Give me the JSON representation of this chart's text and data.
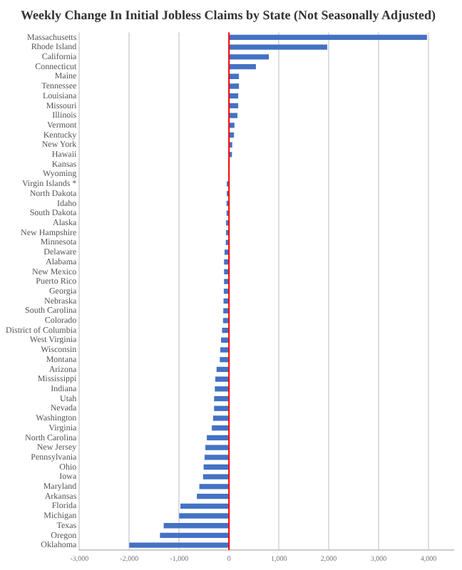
{
  "chart_data": {
    "type": "bar",
    "orientation": "horizontal",
    "title": "Weekly Change In Initial Jobless Claims by State (Not Seasonally Adjusted)",
    "categories": [
      "Massachusetts",
      "Rhode Island",
      "California",
      "Connecticut",
      "Maine",
      "Tennessee",
      "Louisiana",
      "Missouri",
      "Illinois",
      "Vermont",
      "Kentucky",
      "New York",
      "Hawaii",
      "Kansas",
      "Wyoming",
      "Virgin Islands *",
      "North Dakota",
      "Idaho",
      "South Dakota",
      "Alaska",
      "New Hampshire",
      "Minnesota",
      "Delaware",
      "Alabama",
      "New Mexico",
      "Puerto Rico",
      "Georgia",
      "Nebraska",
      "South Carolina",
      "Colorado",
      "District of Columbia",
      "West Virginia",
      "Wisconsin",
      "Montana",
      "Arizona",
      "Mississippi",
      "Indiana",
      "Utah",
      "Nevada",
      "Washington",
      "Virginia",
      "North Carolina",
      "New Jersey",
      "Pennsylvania",
      "Ohio",
      "Iowa",
      "Maryland",
      "Arkansas",
      "Florida",
      "Michigan",
      "Texas",
      "Oregon",
      "Oklahoma"
    ],
    "values": [
      3960,
      1960,
      790,
      530,
      190,
      190,
      175,
      175,
      160,
      100,
      90,
      55,
      50,
      0,
      0,
      -35,
      -35,
      -40,
      -40,
      -50,
      -50,
      -55,
      -80,
      -90,
      -90,
      -90,
      -95,
      -100,
      -105,
      -110,
      -130,
      -150,
      -165,
      -175,
      -240,
      -265,
      -275,
      -290,
      -290,
      -310,
      -335,
      -435,
      -465,
      -480,
      -500,
      -510,
      -585,
      -635,
      -965,
      -990,
      -1300,
      -1375,
      -1990
    ],
    "color": "#4472c4",
    "xlim": [
      -3000,
      4500
    ],
    "xticks": [
      {
        "value": -3000,
        "label": "-3,000"
      },
      {
        "value": -2000,
        "label": "-2,000"
      },
      {
        "value": -1000,
        "label": "-1,000"
      },
      0,
      {
        "value": 1000,
        "label": "1,000"
      },
      {
        "value": 2000,
        "label": "2,000"
      },
      {
        "value": 3000,
        "label": "3,000"
      },
      {
        "value": 4000,
        "label": "4,000"
      }
    ],
    "grid": "x",
    "ref_lines": [
      {
        "axis": "x",
        "value": 0,
        "color": "#ff0000"
      }
    ]
  }
}
